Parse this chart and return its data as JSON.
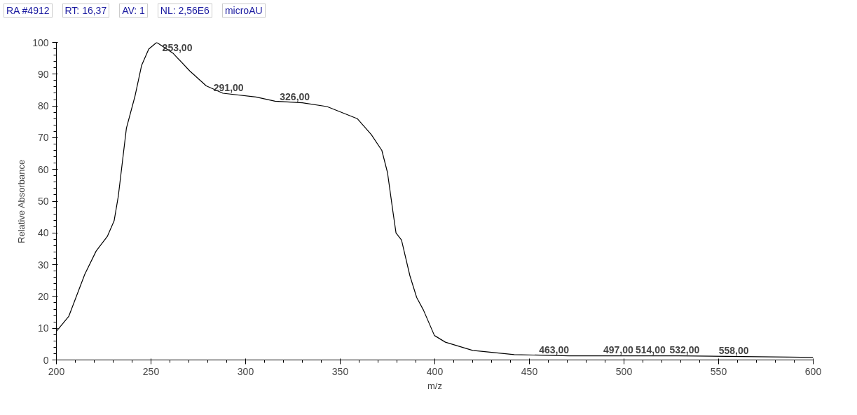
{
  "chart_data": {
    "type": "line",
    "xlabel": "m/z",
    "ylabel": "Relative Absorbance",
    "xlim": [
      200,
      600
    ],
    "ylim": [
      0,
      100
    ],
    "xticks": [
      200,
      250,
      300,
      350,
      400,
      450,
      500,
      550,
      600
    ],
    "yticks": [
      0,
      10,
      20,
      30,
      40,
      50,
      60,
      70,
      80,
      90,
      100
    ],
    "grid": false,
    "marker": "none",
    "line_style": "solid",
    "annotations": [
      "RA #4912",
      "RT: 16,37",
      "AV: 1",
      "NL: 2,56E6",
      "microAU",
      {
        "text": "253,00",
        "x": 253,
        "y": 100
      },
      {
        "text": "291,00",
        "x": 291,
        "y": 83.7
      },
      {
        "text": "326,00",
        "x": 326,
        "y": 81
      },
      {
        "text": "463,00",
        "x": 463,
        "y": 1.3
      },
      {
        "text": "497,00",
        "x": 497,
        "y": 1.3
      },
      {
        "text": "514,00",
        "x": 514,
        "y": 1.3
      },
      {
        "text": "532,00",
        "x": 532,
        "y": 1.2
      },
      {
        "text": "558,00",
        "x": 558,
        "y": 1.0
      }
    ],
    "series": [
      {
        "color": "#000000",
        "x": [
          200,
          206.5,
          215,
          221,
          227,
          230.5,
          232.7,
          237,
          241.5,
          245,
          248.8,
          253,
          261.8,
          270.5,
          279.2,
          288,
          305.5,
          315.6,
          330,
          343,
          359,
          366.4,
          372,
          375,
          377.8,
          379.5,
          382.4,
          386.8,
          390.4,
          394,
          399.8,
          405.6,
          420,
          442,
          471,
          529,
          587,
          600
        ],
        "values": [
          9,
          13.7,
          27,
          34.3,
          39,
          43.8,
          51.5,
          73,
          83,
          92.7,
          97.9,
          100,
          96.5,
          91,
          86.3,
          84,
          82.8,
          81.5,
          81,
          79.8,
          76,
          71,
          66,
          59,
          47,
          40,
          37.8,
          26.6,
          19.7,
          15.7,
          7.7,
          5.6,
          3,
          1.7,
          1.3,
          1.3,
          0.9,
          0.8
        ]
      }
    ]
  }
}
